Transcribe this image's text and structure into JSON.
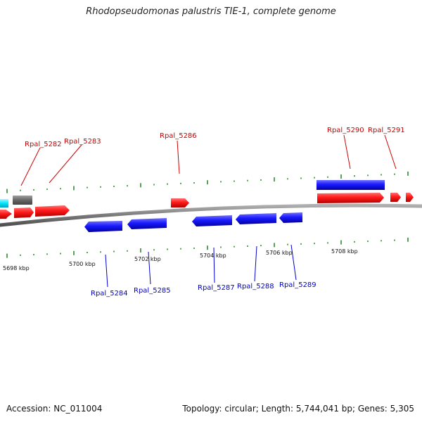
{
  "title": "Rhodopseudomonas palustris TIE-1, complete genome",
  "accession_text": "Accession: NC_011004",
  "summary_text": "Topology: circular; Length: 5,744,041 bp; Genes: 5,305",
  "colors": {
    "forward_gene": "#ff1a1a",
    "reverse_gene": "#1a1aff",
    "label_forward": "#cc0000",
    "label_reverse": "#0000cc",
    "backbone": "#7a7a7a",
    "ticks": "#2e8b2e",
    "other_feature_gray": "#666666",
    "other_feature_cyan": "#00e5ff"
  },
  "labels": {
    "forward": [
      "Rpal_5282",
      "Rpal_5283",
      "Rpal_5286",
      "Rpal_5290",
      "Rpal_5291"
    ],
    "reverse": [
      "Rpal_5284",
      "Rpal_5285",
      "Rpal_5287",
      "Rpal_5288",
      "Rpal_5289"
    ]
  },
  "scale": {
    "ticks": [
      "5698 kbp",
      "5700 kbp",
      "5702 kbp",
      "5704 kbp",
      "5706 kbp",
      "5708 kbp"
    ]
  }
}
